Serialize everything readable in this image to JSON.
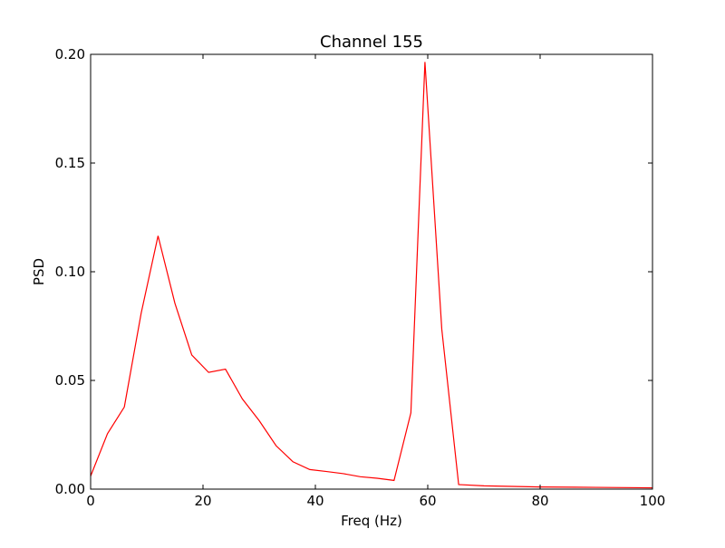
{
  "chart_data": {
    "type": "line",
    "title": "Channel 155",
    "xlabel": "Freq (Hz)",
    "ylabel": "PSD",
    "xlim": [
      0,
      100
    ],
    "ylim": [
      0,
      0.2
    ],
    "x_ticks": [
      0,
      20,
      40,
      60,
      80,
      100
    ],
    "x_tick_labels": [
      "0",
      "20",
      "40",
      "60",
      "80",
      "100"
    ],
    "y_ticks": [
      0,
      0.05,
      0.1,
      0.15,
      0.2
    ],
    "y_tick_labels": [
      "0.00",
      "0.05",
      "0.10",
      "0.15",
      "0.20"
    ],
    "grid": false,
    "line_color": "#ff0000",
    "series": [
      {
        "x": [
          0,
          3,
          6,
          9,
          12,
          15,
          18,
          21,
          24,
          27,
          30,
          33,
          36,
          39,
          42,
          45,
          48,
          51,
          54,
          57,
          59.5,
          62.5,
          65.5,
          70,
          80,
          90,
          100
        ],
        "y": [
          0.006,
          0.0255,
          0.0378,
          0.081,
          0.1165,
          0.0855,
          0.0617,
          0.0537,
          0.0552,
          0.0415,
          0.0315,
          0.02,
          0.0126,
          0.009,
          0.0081,
          0.0071,
          0.0057,
          0.005,
          0.004,
          0.0351,
          0.1965,
          0.0735,
          0.0021,
          0.0015,
          0.001,
          0.0008,
          0.0006
        ]
      }
    ]
  }
}
